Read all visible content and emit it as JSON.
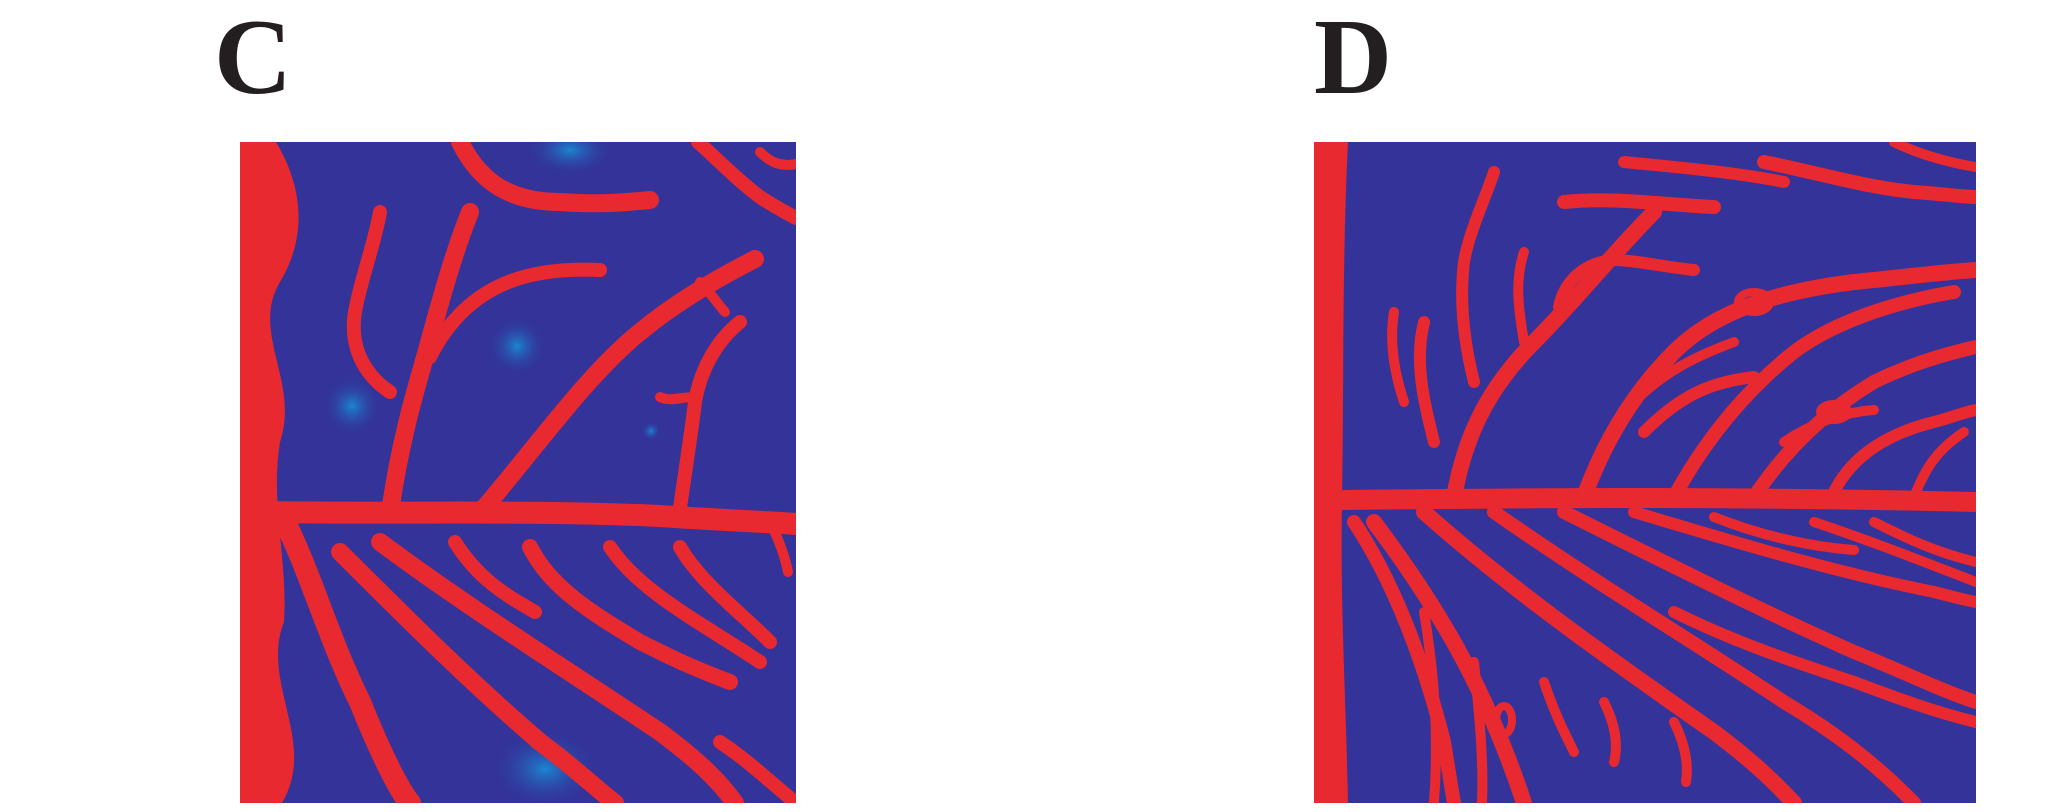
{
  "panels": [
    {
      "letter": "C"
    },
    {
      "letter": "D"
    }
  ],
  "colors": {
    "background": "#333399",
    "vessel": "#e8292f",
    "glow": "#1a7fc8",
    "letter": "#231f20"
  }
}
